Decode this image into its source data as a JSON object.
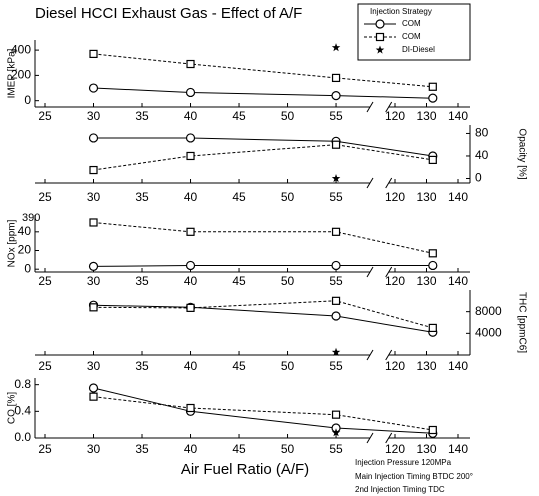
{
  "chart_data": [
    {
      "type": "line",
      "title": "Diesel HCCI Exhaust Gas - Effect of A/F",
      "legend_title": "Injection Strategy",
      "ylabel": "IMEP [kPa]",
      "y_axis": "left",
      "ylim": [
        -50,
        480
      ],
      "yticks": [
        0,
        200,
        400
      ],
      "x": [
        30,
        40,
        55,
        132
      ],
      "xlim": [
        25,
        145
      ],
      "xbreak": [
        58.5,
        118
      ],
      "xticks": [
        25,
        30,
        35,
        40,
        45,
        50,
        55,
        120,
        130,
        140
      ],
      "series": [
        {
          "name": "COM",
          "color": "#000000",
          "marker": "circle",
          "dash": false,
          "values": [
            100,
            65,
            40,
            20
          ]
        },
        {
          "name": "COM",
          "color": "#000000",
          "marker": "square",
          "dash": true,
          "values": [
            370,
            290,
            180,
            110
          ]
        },
        {
          "name": "DI-Diesel",
          "color": "#000000",
          "marker": "star",
          "dash": false,
          "values": [
            null,
            null,
            420,
            null
          ]
        }
      ]
    },
    {
      "type": "line",
      "ylabel": "Opacity [%]",
      "y_axis": "right",
      "ylim": [
        -8,
        95
      ],
      "yticks": [
        0,
        40,
        80
      ],
      "x": [
        30,
        40,
        55,
        132
      ],
      "xlim": [
        25,
        145
      ],
      "xbreak": [
        58.5,
        118
      ],
      "xticks": [
        25,
        30,
        35,
        40,
        45,
        50,
        55,
        120,
        130,
        140
      ],
      "series": [
        {
          "color": "#000000",
          "marker": "circle",
          "dash": false,
          "values": [
            72,
            72,
            66,
            40
          ]
        },
        {
          "color": "#000000",
          "marker": "square",
          "dash": true,
          "values": [
            15,
            40,
            60,
            33
          ]
        },
        {
          "color": "#000000",
          "marker": "star",
          "dash": false,
          "values": [
            null,
            null,
            0,
            null
          ]
        }
      ]
    },
    {
      "type": "line",
      "ylabel": "NOx [ppm]",
      "y_axis": "left",
      "ylim": [
        -3,
        58
      ],
      "yticks": [
        0,
        20,
        40
      ],
      "annotations": [
        "390"
      ],
      "x": [
        30,
        40,
        55,
        132
      ],
      "xlim": [
        25,
        145
      ],
      "xbreak": [
        58.5,
        118
      ],
      "xticks": [
        25,
        30,
        35,
        40,
        45,
        50,
        55,
        120,
        130,
        140
      ],
      "series": [
        {
          "color": "#000000",
          "marker": "circle",
          "dash": false,
          "values": [
            3,
            4,
            4,
            4
          ]
        },
        {
          "color": "#000000",
          "marker": "square",
          "dash": true,
          "values": [
            50,
            40,
            40,
            17
          ]
        }
      ]
    },
    {
      "type": "line",
      "ylabel": "THC [ppmC6]",
      "y_axis": "right",
      "ylim": [
        0,
        12000
      ],
      "yticks": [
        4000,
        8000
      ],
      "x": [
        30,
        40,
        55,
        132
      ],
      "xlim": [
        25,
        145
      ],
      "xbreak": [
        58.5,
        118
      ],
      "xticks": [
        25,
        30,
        35,
        40,
        45,
        50,
        55,
        120,
        130,
        140
      ],
      "series": [
        {
          "color": "#000000",
          "marker": "circle",
          "dash": false,
          "values": [
            9200,
            8800,
            7200,
            4200
          ]
        },
        {
          "color": "#000000",
          "marker": "square",
          "dash": true,
          "values": [
            8800,
            8700,
            10000,
            5000
          ]
        },
        {
          "color": "#000000",
          "marker": "star",
          "dash": false,
          "values": [
            null,
            null,
            500,
            null
          ]
        }
      ]
    },
    {
      "type": "line",
      "ylabel": "CO [%]",
      "y_axis": "left",
      "ylim": [
        0,
        0.9
      ],
      "yticks": [
        {
          "value": 0,
          "label": "0.0"
        },
        0.4,
        0.8
      ],
      "xlabel": "Air Fuel Ratio (A/F)",
      "annotations": [
        "Injection Pressure 120MPa",
        "Main Injection Timing BTDC 200°",
        "2nd Injection Timing TDC"
      ],
      "x": [
        30,
        40,
        55,
        132
      ],
      "xlim": [
        25,
        145
      ],
      "xbreak": [
        58.5,
        118
      ],
      "xticks": [
        25,
        30,
        35,
        40,
        45,
        50,
        55,
        120,
        130,
        140
      ],
      "series": [
        {
          "color": "#000000",
          "marker": "circle",
          "dash": false,
          "values": [
            0.75,
            0.4,
            0.15,
            0.07
          ]
        },
        {
          "color": "#000000",
          "marker": "square",
          "dash": true,
          "values": [
            0.62,
            0.45,
            0.35,
            0.12
          ]
        },
        {
          "color": "#000000",
          "marker": "star",
          "dash": false,
          "values": [
            null,
            null,
            0.08,
            null
          ]
        }
      ]
    }
  ]
}
